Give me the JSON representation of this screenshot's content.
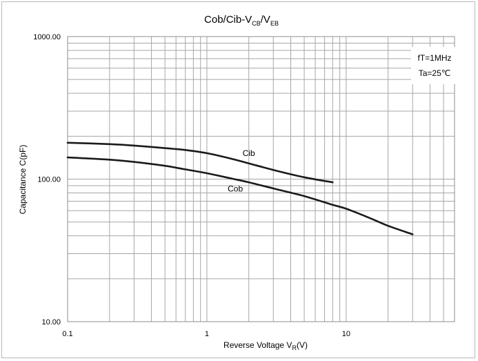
{
  "chart_data": {
    "type": "line",
    "title": {
      "main": "Cob/Cib-V",
      "sub1": "CB",
      "sep": "/V",
      "sub2": "EB"
    },
    "xlabel": {
      "main": "Reverse Voltage  V",
      "sub": "R",
      "unit": "(V)"
    },
    "ylabel": "Capacitance  C(pF)",
    "x_scale": "log",
    "y_scale": "log",
    "xlim": [
      0.1,
      60
    ],
    "ylim": [
      10,
      1000
    ],
    "x_ticks": [
      {
        "value": 0.1,
        "label": "0.1"
      },
      {
        "value": 1,
        "label": "1"
      },
      {
        "value": 10,
        "label": "10"
      }
    ],
    "y_ticks": [
      {
        "value": 10,
        "label": "10.00"
      },
      {
        "value": 100,
        "label": "100.00"
      },
      {
        "value": 1000,
        "label": "1000.00"
      }
    ],
    "grid": true,
    "annotations": [
      "fT=1MHz",
      "Ta=25℃"
    ],
    "series": [
      {
        "name": "Cib",
        "x": [
          0.1,
          0.2,
          0.3,
          0.5,
          0.7,
          1.0,
          1.5,
          2.0,
          3.0,
          5.0,
          8.0
        ],
        "y": [
          180,
          176,
          172,
          165,
          160,
          152,
          139,
          129,
          116,
          103,
          95
        ]
      },
      {
        "name": "Cob",
        "x": [
          0.1,
          0.2,
          0.3,
          0.5,
          0.7,
          1.0,
          1.5,
          2.0,
          3.0,
          5.0,
          8.0,
          10,
          15,
          20,
          30
        ],
        "y": [
          142,
          137,
          132,
          124,
          117,
          110,
          101,
          95,
          86,
          76,
          66,
          62,
          53,
          47,
          41
        ]
      }
    ],
    "colors": {
      "line": "#1a1a1a",
      "grid": "#a6a6a6",
      "frame": "#8c8c8c"
    }
  }
}
